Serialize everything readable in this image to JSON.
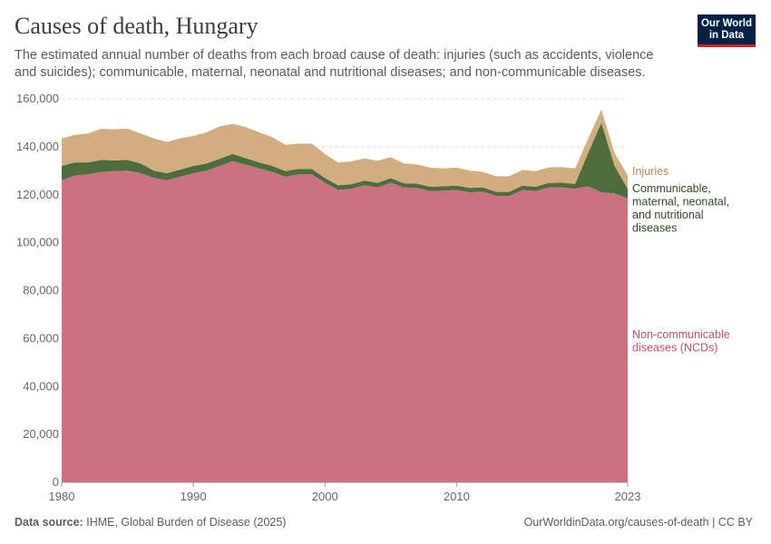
{
  "header": {
    "title": "Causes of death, Hungary",
    "subtitle": "The estimated annual number of deaths from each broad cause of death: injuries (such as accidents, violence and suicides); communicable, maternal, neonatal and nutritional diseases; and non-communicable diseases.",
    "logo_line1": "Our World",
    "logo_line2": "in Data"
  },
  "footer": {
    "source_label": "Data source:",
    "source_text": "IHME, Global Burden of Disease (2025)",
    "link_text": "OurWorldinData.org/causes-of-death | CC BY"
  },
  "colors": {
    "ncd": "#cc7180",
    "communicable": "#4d6d3f",
    "injuries": "#d1ad80",
    "injuries_label": "#b08a58",
    "communicable_label": "#2c4a24",
    "ncd_label": "#c0506a"
  },
  "chart_data": {
    "type": "area",
    "stacked": true,
    "x": [
      1980,
      1981,
      1982,
      1983,
      1984,
      1985,
      1986,
      1987,
      1988,
      1989,
      1990,
      1991,
      1992,
      1993,
      1994,
      1995,
      1996,
      1997,
      1998,
      1999,
      2000,
      2001,
      2002,
      2003,
      2004,
      2005,
      2006,
      2007,
      2008,
      2009,
      2010,
      2011,
      2012,
      2013,
      2014,
      2015,
      2016,
      2017,
      2018,
      2019,
      2020,
      2021,
      2022,
      2023
    ],
    "x_ticks": [
      "1980",
      "1990",
      "2000",
      "2010",
      "2023"
    ],
    "y_ticks": [
      "0",
      "20,000",
      "40,000",
      "60,000",
      "80,000",
      "100,000",
      "120,000",
      "140,000",
      "160,000"
    ],
    "ylim": [
      0,
      160000
    ],
    "grid": true,
    "legend": "right, inline labels",
    "series": [
      {
        "name": "Non-communicable diseases (NCDs)",
        "label_lines": [
          "Non-communicable",
          "diseases (NCDs)"
        ],
        "values": [
          126000,
          128000,
          128500,
          129500,
          129800,
          130000,
          129000,
          127000,
          126000,
          127500,
          129000,
          130000,
          132000,
          134000,
          132500,
          131000,
          129500,
          127500,
          128500,
          128500,
          125000,
          122000,
          122500,
          124000,
          123000,
          125000,
          123000,
          122800,
          121500,
          121700,
          122000,
          121000,
          121300,
          119500,
          119500,
          122000,
          121500,
          123000,
          123000,
          122500,
          123500,
          121000,
          120500,
          118500
        ]
      },
      {
        "name": "Communicable, maternal, neonatal, and nutritional diseases",
        "label_lines": [
          "Communicable,",
          "maternal, neonatal,",
          "and nutritional",
          "diseases"
        ],
        "values": [
          6000,
          5500,
          5000,
          5000,
          4500,
          4500,
          4000,
          3000,
          3000,
          3000,
          3000,
          3000,
          3000,
          3000,
          2700,
          2500,
          2500,
          2300,
          2300,
          2300,
          2000,
          1900,
          1900,
          1900,
          1900,
          1900,
          1800,
          1800,
          1800,
          1800,
          1800,
          1800,
          1700,
          1700,
          1700,
          1800,
          1800,
          1900,
          2000,
          2000,
          14000,
          29000,
          11500,
          4000
        ]
      },
      {
        "name": "Injuries",
        "label_lines": [
          "Injuries"
        ],
        "values": [
          11500,
          11500,
          12000,
          13000,
          13000,
          13000,
          12500,
          13500,
          13000,
          13000,
          12500,
          13000,
          13500,
          12500,
          13000,
          12500,
          12000,
          11000,
          10500,
          10500,
          10000,
          9500,
          9500,
          9300,
          9300,
          8800,
          8200,
          8000,
          8000,
          7500,
          7500,
          7200,
          6500,
          6500,
          6500,
          6500,
          6500,
          6500,
          6500,
          6500,
          6000,
          5500,
          5500,
          5500
        ]
      }
    ]
  }
}
